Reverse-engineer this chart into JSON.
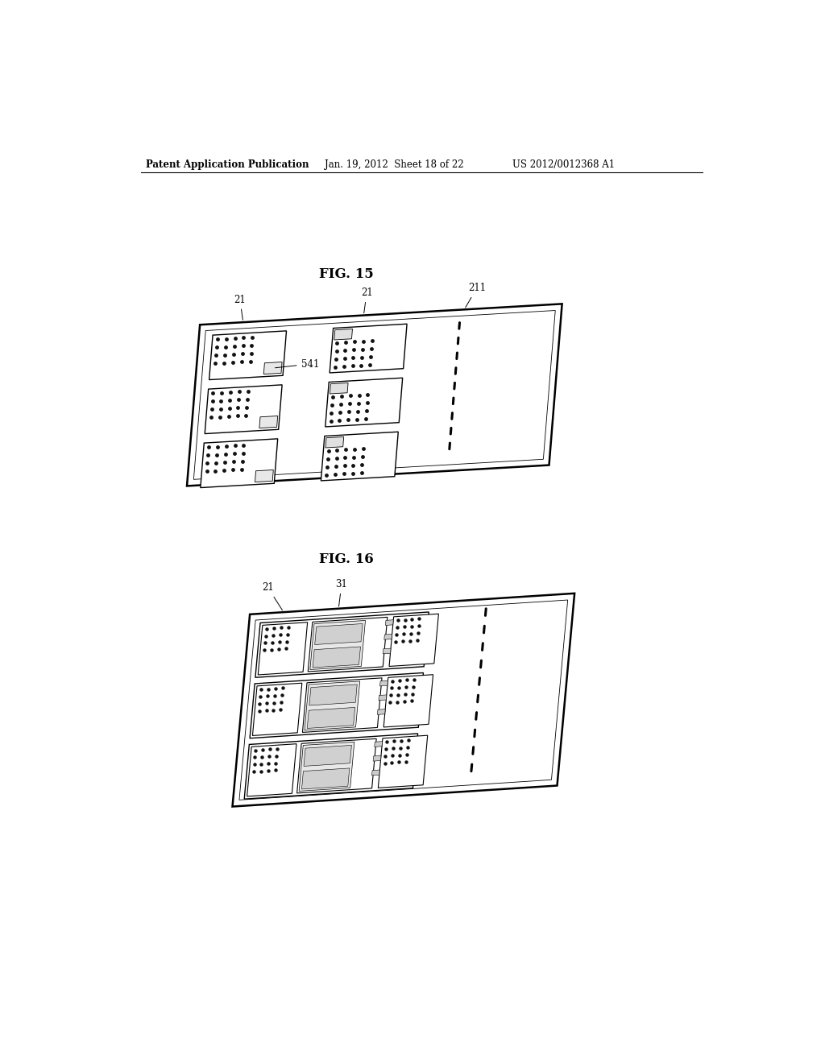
{
  "background_color": "#ffffff",
  "header_text": "Patent Application Publication",
  "header_date": "Jan. 19, 2012  Sheet 18 of 22",
  "header_patent": "US 2012/0012368 A1",
  "fig15_title": "FIG. 15",
  "fig16_title": "FIG. 16",
  "fig15_label_21_left": "21",
  "fig15_label_21_right": "21",
  "fig15_label_211": "211",
  "fig15_label_541": "541",
  "fig16_label_21": "21",
  "fig16_label_31": "31"
}
